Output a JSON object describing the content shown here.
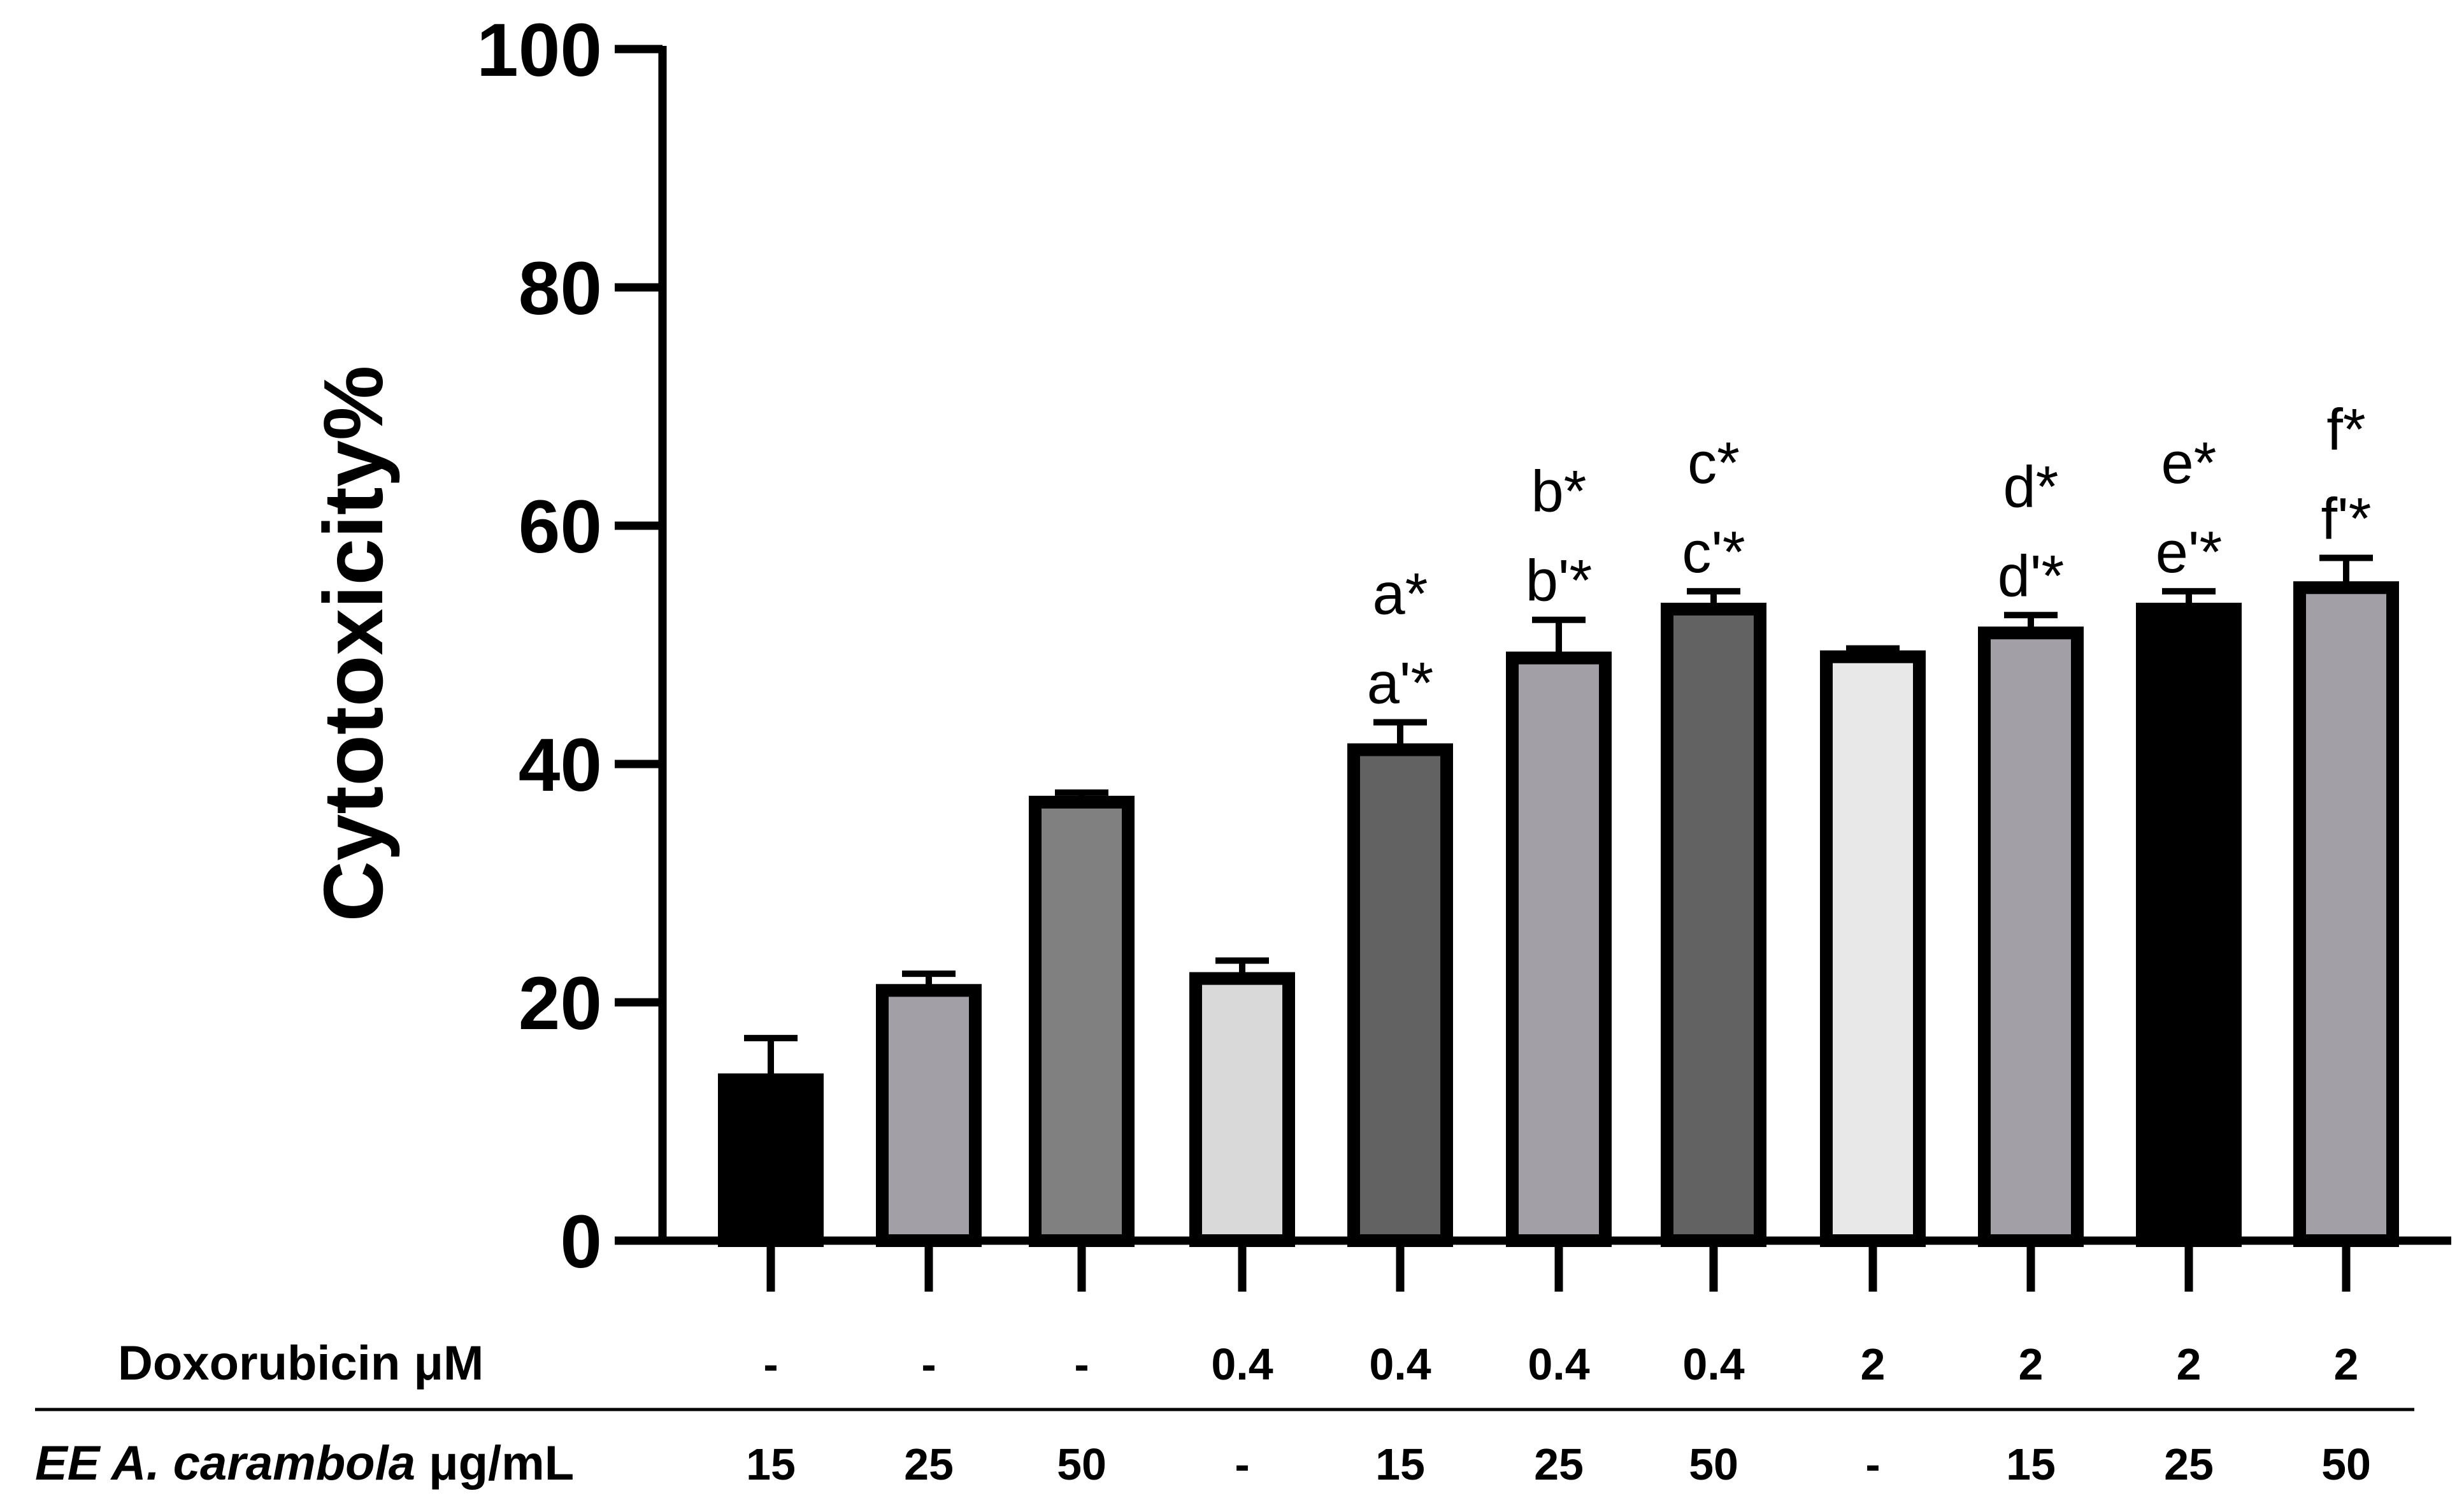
{
  "chart_data": {
    "type": "bar",
    "title": "",
    "xlabel": "",
    "ylabel": "Cytotoxicity%",
    "ylim": [
      0,
      100
    ],
    "yticks": [
      "0",
      "20",
      "40",
      "60",
      "80",
      "100"
    ],
    "ytick_values": [
      0,
      20,
      40,
      60,
      80,
      100
    ],
    "grid": false,
    "bars": [
      {
        "value": 13.5,
        "error": 3.5,
        "fill": "#000000",
        "annot_top": "",
        "annot_bottom": ""
      },
      {
        "value": 21.0,
        "error": 1.4,
        "fill": "#a29fa6",
        "annot_top": "",
        "annot_bottom": ""
      },
      {
        "value": 36.8,
        "error": 0.8,
        "fill": "#808080",
        "annot_top": "",
        "annot_bottom": ""
      },
      {
        "value": 22.0,
        "error": 1.5,
        "fill": "#d9d9d9",
        "annot_top": "",
        "annot_bottom": ""
      },
      {
        "value": 41.2,
        "error": 2.3,
        "fill": "#626262",
        "annot_top": "a*",
        "annot_bottom": "a'*"
      },
      {
        "value": 48.9,
        "error": 3.2,
        "fill": "#a29fa6",
        "annot_top": "b*",
        "annot_bottom": "b'*"
      },
      {
        "value": 53.0,
        "error": 1.5,
        "fill": "#626262",
        "annot_top": "c*",
        "annot_bottom": "c'*"
      },
      {
        "value": 49.0,
        "error": 0.7,
        "fill": "#e8e8e8",
        "annot_top": "",
        "annot_bottom": ""
      },
      {
        "value": 51.0,
        "error": 1.5,
        "fill": "#a29fa6",
        "annot_top": "d*",
        "annot_bottom": "d'*"
      },
      {
        "value": 53.0,
        "error": 1.5,
        "fill": "#000000",
        "annot_top": "e*",
        "annot_bottom": "e'*"
      },
      {
        "value": 54.8,
        "error": 2.5,
        "fill": "#a29fa6",
        "annot_top": "f*",
        "annot_bottom": "f'*"
      }
    ],
    "table": {
      "row1_label": "Doxorubicin μM",
      "row1_values": [
        "-",
        "-",
        "-",
        "0.4",
        "0.4",
        "0.4",
        "0.4",
        "2",
        "2",
        "2",
        "2"
      ],
      "row2_label_italic": "EE A. carambola",
      "row2_label_unit": " μg/mL",
      "row2_values": [
        "15",
        "25",
        "50",
        "-",
        "15",
        "25",
        "50",
        "-",
        "15",
        "25",
        "50"
      ]
    }
  }
}
